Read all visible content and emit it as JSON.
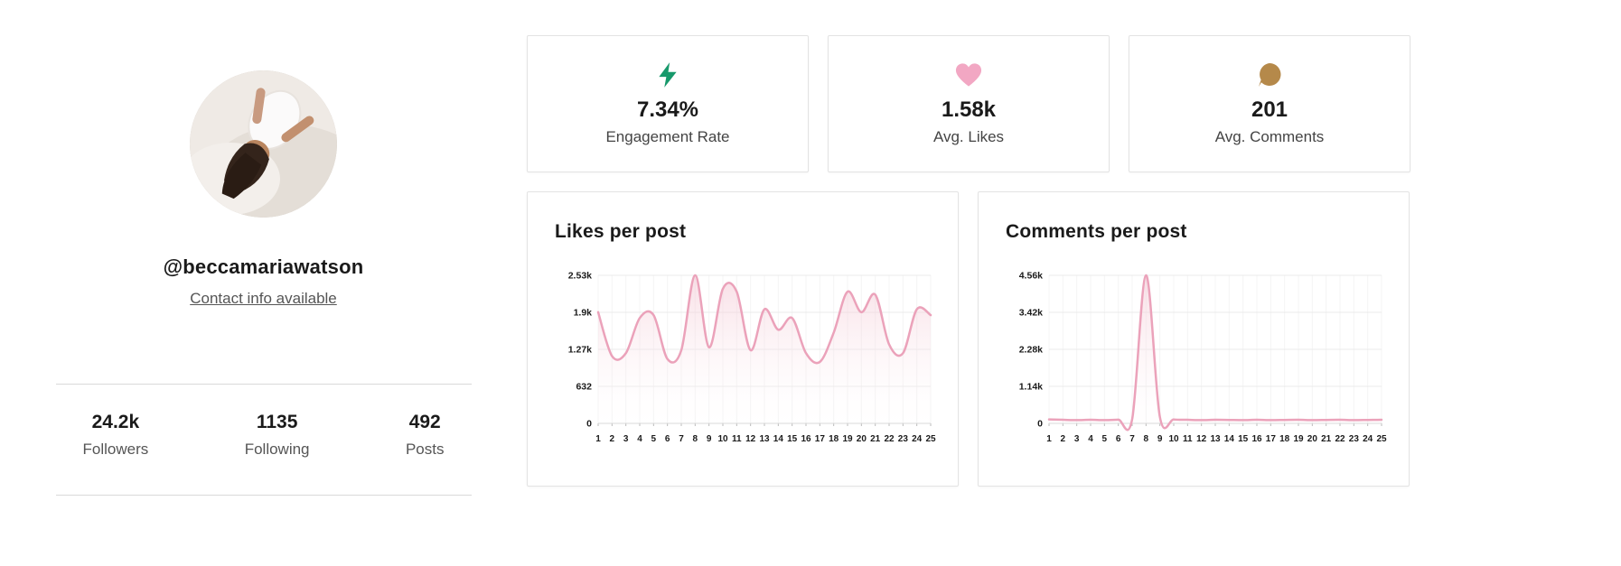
{
  "profile": {
    "username": "@beccamariawatson",
    "contact_link": "Contact info available",
    "avatar_alt": "profile-photo",
    "stats": [
      {
        "value": "24.2k",
        "label": "Followers"
      },
      {
        "value": "1135",
        "label": "Following"
      },
      {
        "value": "492",
        "label": "Posts"
      }
    ]
  },
  "summary_cards": [
    {
      "icon": "lightning-icon",
      "icon_color": "#17996b",
      "value": "7.34%",
      "label": "Engagement Rate"
    },
    {
      "icon": "heart-icon",
      "icon_color": "#f2a7c3",
      "value": "1.58k",
      "label": "Avg. Likes"
    },
    {
      "icon": "comment-icon",
      "icon_color": "#b5894a",
      "value": "201",
      "label": "Avg. Comments"
    }
  ],
  "chart_colors": {
    "line": "#eba2ba",
    "fill_top": "rgba(243,196,209,0.55)",
    "fill_bottom": "rgba(255,251,252,0.05)",
    "grid": "#ebebeb",
    "axis": "#d8d8d8"
  },
  "chart_data": [
    {
      "type": "area",
      "title": "Likes per post",
      "x": [
        1,
        2,
        3,
        4,
        5,
        6,
        7,
        8,
        9,
        10,
        11,
        12,
        13,
        14,
        15,
        16,
        17,
        18,
        19,
        20,
        21,
        22,
        23,
        24,
        25
      ],
      "values": [
        1900,
        1150,
        1200,
        1800,
        1850,
        1100,
        1250,
        2530,
        1300,
        2300,
        2250,
        1250,
        1950,
        1600,
        1800,
        1200,
        1050,
        1550,
        2250,
        1900,
        2200,
        1350,
        1200,
        1950,
        1850
      ],
      "ylim": [
        0,
        2530
      ],
      "y_ticks": [
        {
          "label": "0",
          "value": 0
        },
        {
          "label": "632",
          "value": 632
        },
        {
          "label": "1.27k",
          "value": 1265
        },
        {
          "label": "1.9k",
          "value": 1897
        },
        {
          "label": "2.53k",
          "value": 2530
        }
      ],
      "grid": true,
      "legend": "none"
    },
    {
      "type": "area",
      "title": "Comments per post",
      "x": [
        1,
        2,
        3,
        4,
        5,
        6,
        7,
        8,
        9,
        10,
        11,
        12,
        13,
        14,
        15,
        16,
        17,
        18,
        19,
        20,
        21,
        22,
        23,
        24,
        25
      ],
      "values": [
        120,
        110,
        100,
        110,
        100,
        115,
        130,
        4560,
        200,
        120,
        110,
        100,
        110,
        105,
        100,
        110,
        100,
        105,
        110,
        100,
        105,
        110,
        100,
        105,
        110
      ],
      "ylim": [
        0,
        4560
      ],
      "y_ticks": [
        {
          "label": "0",
          "value": 0
        },
        {
          "label": "1.14k",
          "value": 1140
        },
        {
          "label": "2.28k",
          "value": 2280
        },
        {
          "label": "3.42k",
          "value": 3420
        },
        {
          "label": "4.56k",
          "value": 4560
        }
      ],
      "grid": true,
      "legend": "none"
    }
  ]
}
